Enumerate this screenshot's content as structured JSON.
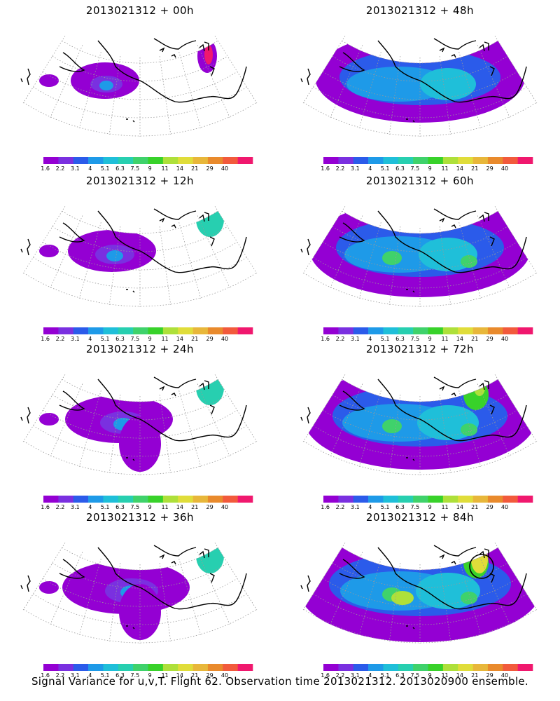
{
  "colorbar": {
    "labels": [
      "1.6",
      "2.2",
      "3.1",
      "4",
      "5.1",
      "6.3",
      "7.5",
      "9",
      "11",
      "14",
      "21",
      "29",
      "40"
    ],
    "colors": [
      "#9400d3",
      "#7a30e0",
      "#2b5bea",
      "#1e9ae8",
      "#1fbfd9",
      "#27cfb0",
      "#3fd26b",
      "#38d22a",
      "#aee03a",
      "#e0dd3a",
      "#e8b73a",
      "#e98a2c",
      "#f25a3c",
      "#f0186e"
    ]
  },
  "panels": [
    {
      "title": "2013021312 + 00h",
      "coverage": 1
    },
    {
      "title": "2013021312 + 48h",
      "coverage": 5
    },
    {
      "title": "2013021312 + 12h",
      "coverage": 2
    },
    {
      "title": "2013021312 + 60h",
      "coverage": 6
    },
    {
      "title": "2013021312 + 24h",
      "coverage": 3
    },
    {
      "title": "2013021312 + 72h",
      "coverage": 7
    },
    {
      "title": "2013021312 + 36h",
      "coverage": 4
    },
    {
      "title": "2013021312 + 84h",
      "coverage": 8
    }
  ],
  "caption": "Signal Variance for u,v,T. Flight 62. Observation time 2013021312. 2013020900 ensemble.",
  "chart_data": {
    "type": "heatmap",
    "colorbar_levels": [
      1.6,
      2.2,
      3.1,
      4,
      5.1,
      6.3,
      7.5,
      9,
      11,
      14,
      21,
      29,
      40
    ],
    "forecast_hours": [
      0,
      12,
      24,
      36,
      48,
      60,
      72,
      84
    ],
    "base_time": "2013021312"
  }
}
